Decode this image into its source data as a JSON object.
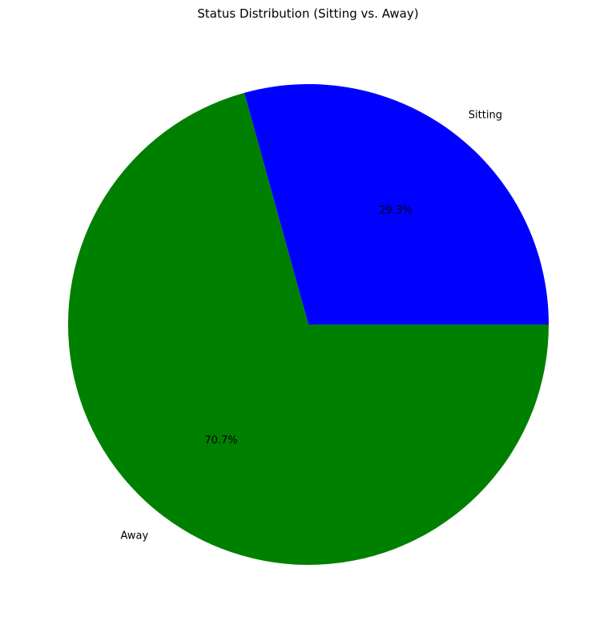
{
  "chart_data": {
    "type": "pie",
    "title": "Status Distribution (Sitting vs. Away)",
    "slices": [
      {
        "label": "Sitting",
        "value": 29.3,
        "pct_label": "29.3%",
        "color": "#0000ff"
      },
      {
        "label": "Away",
        "value": 70.7,
        "pct_label": "70.7%",
        "color": "#008000"
      }
    ],
    "start_angle_deg": 0,
    "direction": "counterclockwise",
    "legend": "none"
  }
}
